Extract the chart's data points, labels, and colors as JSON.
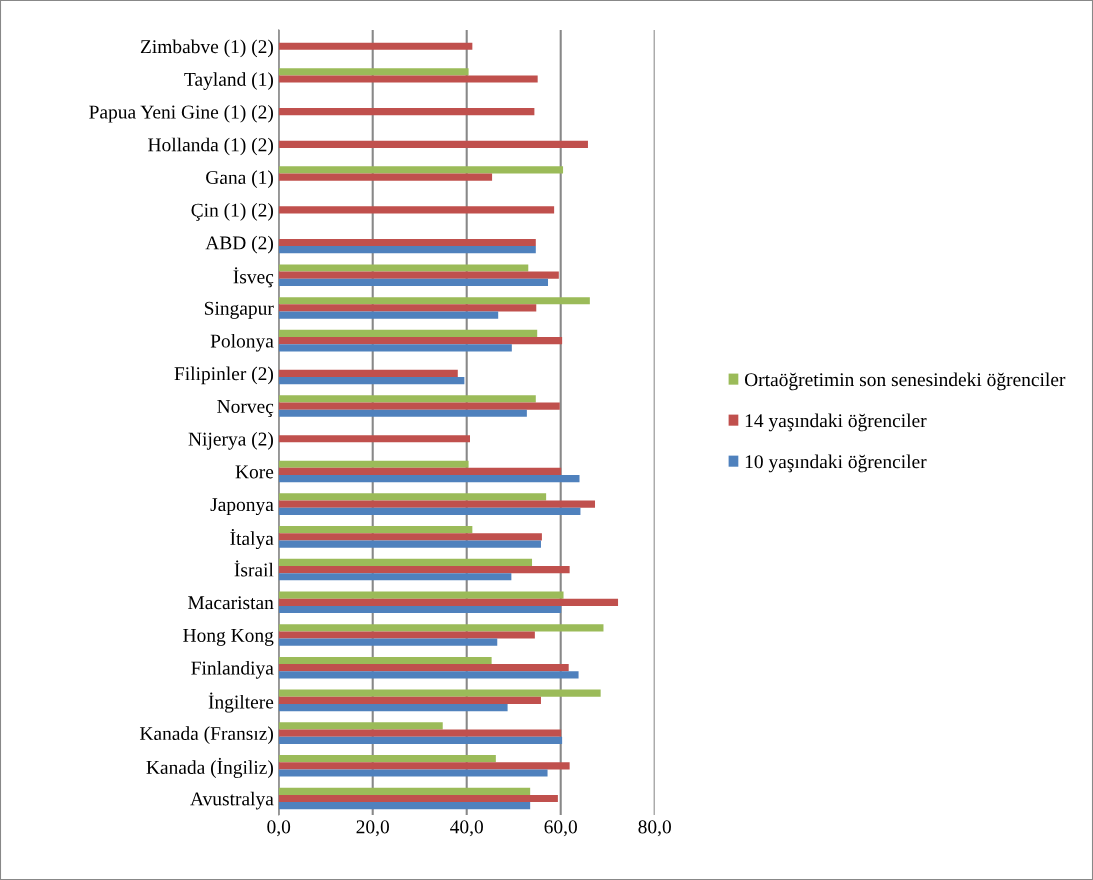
{
  "chart_data": {
    "type": "bar",
    "orientation": "horizontal",
    "categories": [
      "Zimbabve (1) (2)",
      "Tayland (1)",
      "Papua Yeni Gine (1) (2)",
      "Hollanda (1) (2)",
      "Gana (1)",
      "Çin (1) (2)",
      "ABD (2)",
      "İsveç",
      "Singapur",
      "Polonya",
      "Filipinler (2)",
      "Norveç",
      "Nijerya (2)",
      "Kore",
      "Japonya",
      "İtalya",
      "İsrail",
      "Macaristan",
      "Hong Kong",
      "Finlandiya",
      "İngiltere",
      "Kanada (Fransız)",
      "Kanada (İngiliz)",
      "Avustralya"
    ],
    "series": [
      {
        "name": "Ortaöğretimin son senesindeki öğrenciler",
        "color": "#9bbb59",
        "values": [
          null,
          40.4,
          null,
          null,
          60.5,
          null,
          null,
          53.1,
          66.2,
          55.0,
          null,
          54.7,
          null,
          40.4,
          56.9,
          41.2,
          53.9,
          60.6,
          69.1,
          45.3,
          68.5,
          34.9,
          46.2,
          53.5
        ]
      },
      {
        "name": "14 yaşındaki öğrenciler",
        "color": "#c0504d",
        "values": [
          41.2,
          55.1,
          54.4,
          65.8,
          45.4,
          58.6,
          54.7,
          59.6,
          54.8,
          60.3,
          38.1,
          59.8,
          40.7,
          60.1,
          67.3,
          56.0,
          61.9,
          72.2,
          54.5,
          61.7,
          55.8,
          60.1,
          61.9,
          59.4
        ]
      },
      {
        "name": "10 yaşındaki öğrenciler",
        "color": "#4f81bd",
        "values": [
          null,
          null,
          null,
          null,
          null,
          null,
          54.7,
          57.3,
          46.7,
          49.6,
          39.5,
          52.8,
          null,
          64.0,
          64.2,
          55.8,
          49.5,
          60.1,
          46.5,
          63.8,
          48.7,
          60.3,
          57.2,
          53.5
        ]
      }
    ],
    "xlim": [
      0,
      80
    ],
    "xticks": [
      {
        "value": 0,
        "label": "0,0"
      },
      {
        "value": 20,
        "label": "20,0"
      },
      {
        "value": 40,
        "label": "40,0"
      },
      {
        "value": 60,
        "label": "60,0"
      },
      {
        "value": 80,
        "label": "80,0"
      }
    ],
    "grid": "x",
    "legend": "right"
  }
}
